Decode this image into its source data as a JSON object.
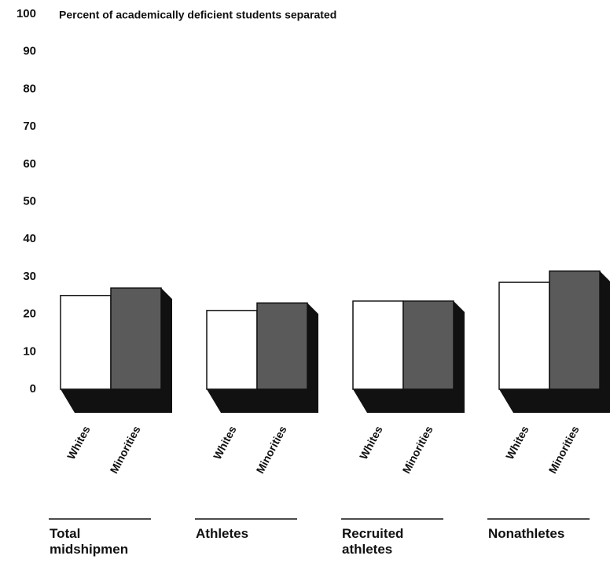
{
  "chart_data": {
    "type": "bar",
    "title": "Percent of academically deficient students separated",
    "categories": [
      "Total midshipmen",
      "Athletes",
      "Recruited athletes",
      "Nonathletes"
    ],
    "series": [
      {
        "name": "Whites",
        "color": "#ffffff",
        "values": [
          25,
          21,
          23.5,
          28.5
        ]
      },
      {
        "name": "Minorities",
        "color": "#5a5a5a",
        "values": [
          27,
          23,
          23.5,
          31.5
        ]
      }
    ],
    "ylim": [
      0,
      100
    ],
    "yticks": [
      0,
      10,
      20,
      30,
      40,
      50,
      60,
      70,
      80,
      90,
      100
    ],
    "grid": false
  }
}
